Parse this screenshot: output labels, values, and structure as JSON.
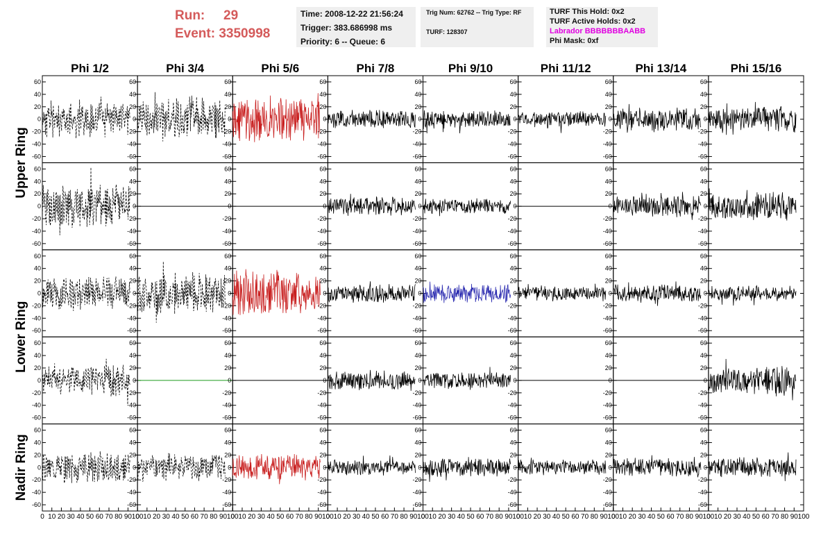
{
  "header": {
    "run_label": "Run:",
    "run_value": "29",
    "event_label": "Event:",
    "event_value": "3350998",
    "time": "Time: 2008-12-22 21:56:24",
    "trigger": "Trigger: 383.686998 ms",
    "priority": "Priority: 6 -- Queue: 6",
    "trig_num": "Trig Num: 62762 -- Trig Type: RF",
    "turf": "TURF: 128307",
    "turf_hold": "TURF This Hold: 0x2",
    "turf_active": "TURF Active Holds: 0x2",
    "labrador": "Labrador BBBBBBBAABB",
    "phi_mask": "Phi Mask: 0xf"
  },
  "colors": {
    "run_text": "#d45a5a",
    "labrador_text": "#e000e0",
    "trace_red": "#c81e1e",
    "trace_blue": "#2b2bb0",
    "trace_green": "#1a9a1a",
    "trace_black": "#000000"
  },
  "chart_data": {
    "type": "line",
    "columns": [
      "Phi 1/2",
      "Phi 3/4",
      "Phi 5/6",
      "Phi 7/8",
      "Phi 9/10",
      "Phi 11/12",
      "Phi 13/14",
      "Phi 15/16"
    ],
    "row_labels": [
      "Upper Ring",
      "Lower Ring",
      "Nadir Ring"
    ],
    "rows": 5,
    "xlim": [
      0,
      100
    ],
    "ylim": [
      -70,
      70
    ],
    "y_ticks": [
      -60,
      -40,
      -20,
      0,
      20,
      40,
      60
    ],
    "x_ticks": [
      0,
      10,
      20,
      30,
      40,
      50,
      60,
      70,
      80,
      90,
      100
    ],
    "x_tick_labels": [
      "0",
      "10",
      "20",
      "30",
      "40",
      "50",
      "60",
      "70",
      "80",
      "90",
      "100"
    ],
    "panels": [
      [
        {
          "style": "dashed",
          "color": "black",
          "amp": 24,
          "seed": 11
        },
        {
          "style": "dashed",
          "color": "black",
          "amp": 28,
          "seed": 12
        },
        {
          "style": "solid",
          "color": "red",
          "amp": 30,
          "seed": 13
        },
        {
          "style": "solid",
          "color": "black",
          "amp": 12,
          "seed": 14
        },
        {
          "style": "solid",
          "color": "black",
          "amp": 12,
          "seed": 15
        },
        {
          "style": "solid",
          "color": "black",
          "amp": 10,
          "seed": 16
        },
        {
          "style": "solid",
          "color": "black",
          "amp": 15,
          "seed": 17
        },
        {
          "style": "solid",
          "color": "black",
          "amp": 17,
          "seed": 18
        }
      ],
      [
        {
          "style": "dashed",
          "color": "black",
          "amp": 30,
          "seed": 21
        },
        {
          "style": "flat",
          "color": "black",
          "amp": 0,
          "seed": 22
        },
        {
          "style": "flat",
          "color": "black",
          "amp": 0,
          "seed": 23
        },
        {
          "style": "solid",
          "color": "black",
          "amp": 12,
          "seed": 24
        },
        {
          "style": "solid",
          "color": "black",
          "amp": 10,
          "seed": 25
        },
        {
          "style": "flat",
          "color": "black",
          "amp": 0,
          "seed": 26
        },
        {
          "style": "solid",
          "color": "black",
          "amp": 14,
          "seed": 27
        },
        {
          "style": "solid",
          "color": "black",
          "amp": 18,
          "seed": 28
        }
      ],
      [
        {
          "style": "dashed",
          "color": "black",
          "amp": 22,
          "seed": 31
        },
        {
          "style": "dashed",
          "color": "black",
          "amp": 26,
          "seed": 32
        },
        {
          "style": "solid",
          "color": "red",
          "amp": 30,
          "seed": 33
        },
        {
          "style": "solid",
          "color": "black",
          "amp": 12,
          "seed": 34
        },
        {
          "style": "solid",
          "color": "blue",
          "amp": 12,
          "seed": 35
        },
        {
          "style": "solid",
          "color": "black",
          "amp": 10,
          "seed": 36
        },
        {
          "style": "solid",
          "color": "black",
          "amp": 12,
          "seed": 37
        },
        {
          "style": "solid",
          "color": "black",
          "amp": 10,
          "seed": 38
        }
      ],
      [
        {
          "style": "dashed",
          "color": "black",
          "amp": 20,
          "seed": 41
        },
        {
          "style": "flat",
          "color": "green",
          "amp": 0,
          "seed": 42
        },
        {
          "style": "flat",
          "color": "black",
          "amp": 0,
          "seed": 43
        },
        {
          "style": "solid",
          "color": "black",
          "amp": 13,
          "seed": 44
        },
        {
          "style": "solid",
          "color": "black",
          "amp": 11,
          "seed": 45
        },
        {
          "style": "flat",
          "color": "black",
          "amp": 0,
          "seed": 46
        },
        {
          "style": "flat",
          "color": "black",
          "amp": 0,
          "seed": 47
        },
        {
          "style": "solid",
          "color": "black",
          "amp": 20,
          "seed": 48
        }
      ],
      [
        {
          "style": "dashed",
          "color": "black",
          "amp": 20,
          "seed": 51
        },
        {
          "style": "dashed",
          "color": "black",
          "amp": 18,
          "seed": 52
        },
        {
          "style": "solid",
          "color": "red",
          "amp": 16,
          "seed": 53
        },
        {
          "style": "solid",
          "color": "black",
          "amp": 10,
          "seed": 54
        },
        {
          "style": "solid",
          "color": "black",
          "amp": 12,
          "seed": 55
        },
        {
          "style": "solid",
          "color": "black",
          "amp": 10,
          "seed": 56
        },
        {
          "style": "solid",
          "color": "black",
          "amp": 12,
          "seed": 57
        },
        {
          "style": "solid",
          "color": "black",
          "amp": 13,
          "seed": 58
        }
      ]
    ]
  }
}
